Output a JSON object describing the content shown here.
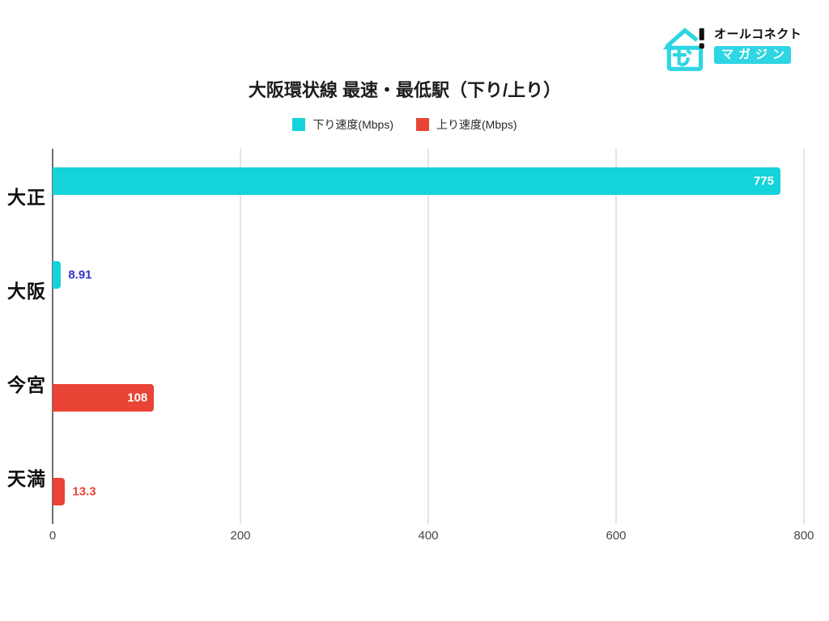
{
  "brand": {
    "name": "オールコネクト",
    "badge": "マガジン",
    "cyan": "#2ed5e2",
    "black": "#111111"
  },
  "chart_data": {
    "type": "bar",
    "orientation": "horizontal",
    "title": "大阪環状線 最速・最低駅（下り/上り）",
    "categories": [
      "大正",
      "大阪",
      "今宮",
      "天満"
    ],
    "series": [
      {
        "name": "下り速度(Mbps)",
        "color": "#14d3da",
        "values": [
          775,
          8.91,
          null,
          null
        ],
        "labels": [
          {
            "text": "775",
            "placement": "inside",
            "color": "#ffffff"
          },
          {
            "text": "8.91",
            "placement": "outside",
            "color": "#3333cc"
          },
          null,
          null
        ]
      },
      {
        "name": "上り速度(Mbps)",
        "color": "#e94435",
        "values": [
          null,
          null,
          108,
          13.3
        ],
        "labels": [
          null,
          null,
          {
            "text": "108",
            "placement": "inside",
            "color": "#ffffff"
          },
          {
            "text": "13.3",
            "placement": "outside",
            "color": "#e94435"
          }
        ]
      }
    ],
    "xlim": [
      0,
      800
    ],
    "x_ticks": [
      0,
      200,
      400,
      600,
      800
    ],
    "grid": "vertical-only",
    "legend_position": "top-center",
    "axis_color": "#6e6e6e",
    "gridline_color": "#e4e4e4",
    "tick_label_color": "#464646",
    "category_label_color": "#0e0e0e"
  }
}
